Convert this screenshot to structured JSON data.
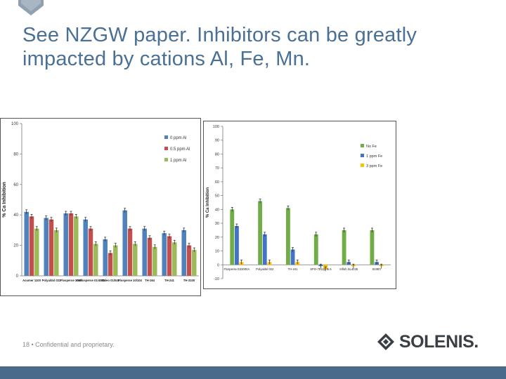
{
  "slide": {
    "title": "See NZGW paper. Inhibitors can be greatly impacted by cations Al, Fe, Mn.",
    "footer": "18 • Confidential and proprietary.",
    "brand": "SOLENIS."
  },
  "colors": {
    "title": "#4a7096",
    "bottom_bar": "#4a6a8c",
    "blue": "#4f81bd",
    "red": "#c0504d",
    "green": "#9bbb59",
    "green2": "#70ad47",
    "blue2": "#4472c4",
    "gold": "#ffc000"
  },
  "chart_data": [
    {
      "type": "bar",
      "ylabel": "% Ca Inhibition",
      "ylim": [
        0,
        100
      ],
      "yticks": [
        0,
        20,
        40,
        60,
        80,
        100
      ],
      "legend_position": "top-right",
      "categories": [
        "Acumer 1100",
        "Polyaldol 022",
        "Flosperse 3000",
        "Gellosperse 01/4040",
        "Maleo 01/040",
        "Flosperse 10/104",
        "TH-164",
        "TH-241",
        "TH-3100"
      ],
      "series": [
        {
          "name": "0 ppm Al",
          "color": "#4f81bd",
          "values": [
            42,
            38,
            41,
            37,
            24,
            43,
            31,
            28,
            30
          ]
        },
        {
          "name": "0.5 ppm Al",
          "color": "#c0504d",
          "values": [
            39,
            37,
            41,
            31,
            15,
            31,
            25,
            26,
            20
          ]
        },
        {
          "name": "1 ppm Al",
          "color": "#9bbb59",
          "values": [
            31,
            30,
            39,
            21,
            20,
            21,
            19,
            22,
            17
          ]
        }
      ]
    },
    {
      "type": "bar",
      "ylabel": "% Ca Inhibition",
      "ylim": [
        -10,
        100
      ],
      "yticks": [
        -10,
        0,
        10,
        20,
        30,
        40,
        50,
        60,
        70,
        80,
        90,
        100
      ],
      "legend_position": "top-right",
      "categories": [
        "Flosperse E33000A",
        "Polyaldol 022",
        "TH-241",
        "SPO-7911pH5.5",
        "Infloh SL4035",
        "SI3907"
      ],
      "series": [
        {
          "name": "No Fe",
          "color": "#70ad47",
          "values": [
            40,
            46,
            41,
            22,
            25,
            25
          ]
        },
        {
          "name": "1 ppm Fe",
          "color": "#4472c4",
          "values": [
            28,
            22,
            11,
            -1,
            2,
            2
          ]
        },
        {
          "name": "3 ppm Fe",
          "color": "#ffc000",
          "values": [
            2,
            2,
            2,
            -3,
            -1,
            -1
          ]
        }
      ]
    }
  ]
}
